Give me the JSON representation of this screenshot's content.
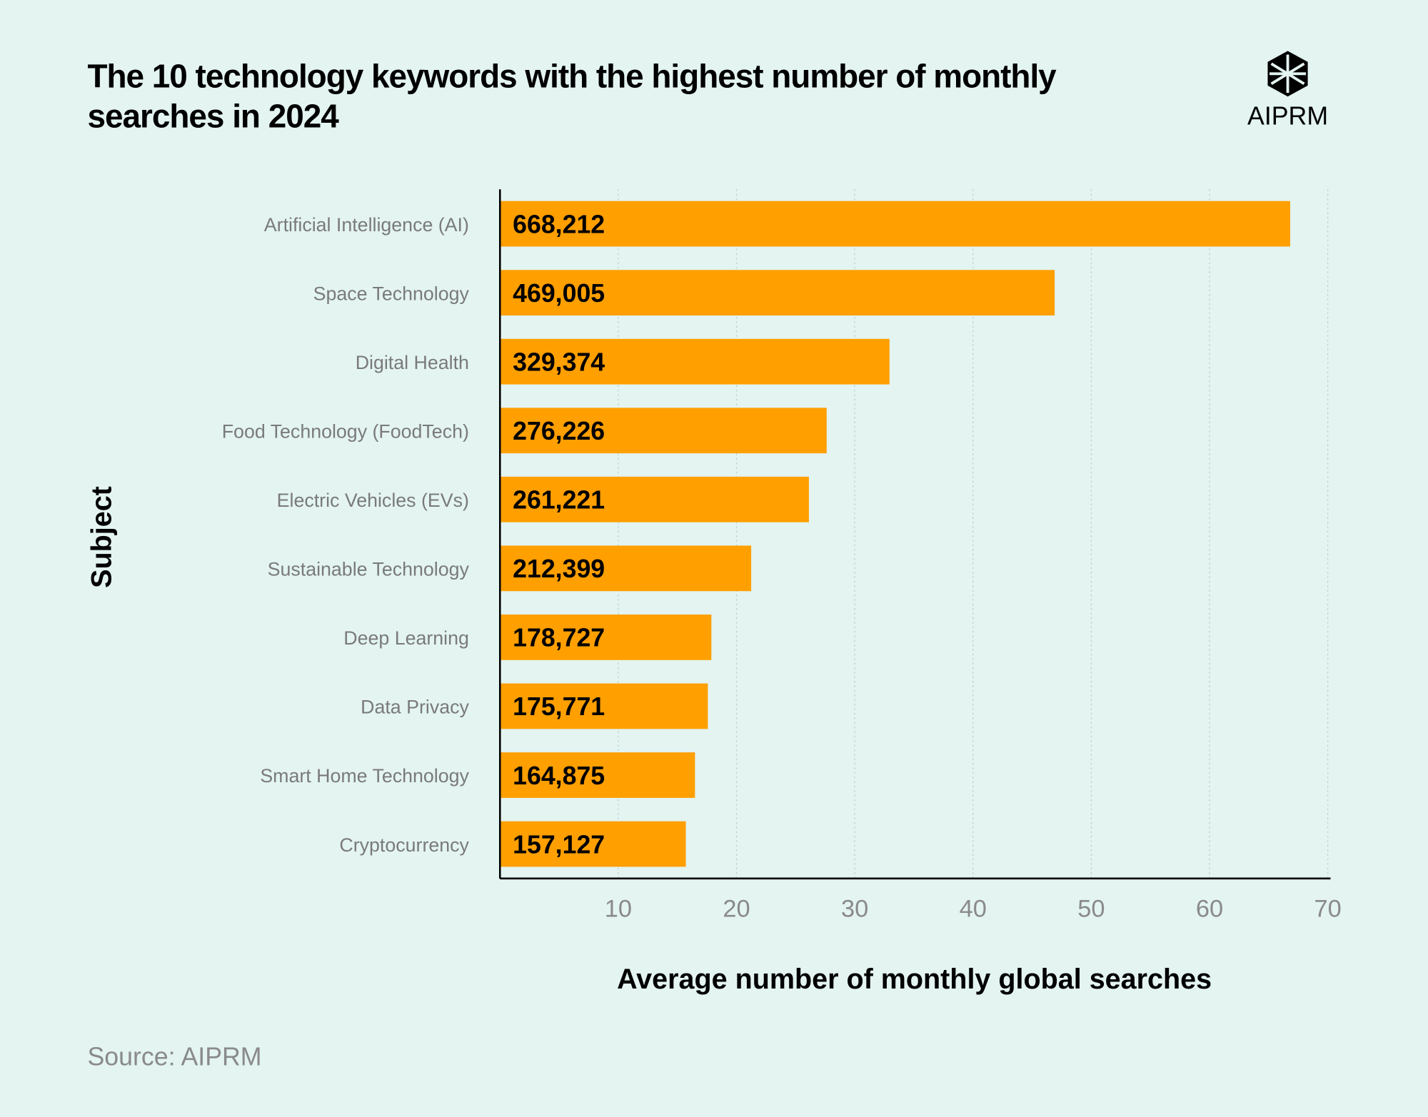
{
  "title": "The 10 technology keywords with the highest number of monthly searches in 2024",
  "logo": "AIPRM",
  "source": "Source: AIPRM",
  "chart_data": {
    "type": "barh",
    "x_label": "Average number of monthly global searches",
    "y_label": "Subject",
    "categories": [
      "Artificial Intelligence (AI)",
      "Space Technology",
      "Digital Health",
      "Food Technology (FoodTech)",
      "Electric Vehicles (EVs)",
      "Sustainable Technology",
      "Deep Learning",
      "Data Privacy",
      "Smart Home Technology",
      "Cryptocurrency"
    ],
    "values": [
      66.8212,
      46.9005,
      32.9374,
      27.6226,
      26.1221,
      21.2399,
      17.8727,
      17.5771,
      16.4875,
      15.7127
    ],
    "value_labels": [
      "668,212",
      "469,005",
      "329,374",
      "276,226",
      "261,221",
      "212,399",
      "178,727",
      "175,771",
      "164,875",
      "157,127"
    ],
    "color": "#ff9f00",
    "xlim": [
      0,
      70
    ],
    "xticks": [
      10,
      20,
      30,
      40,
      50,
      60,
      70
    ],
    "grid": true
  }
}
